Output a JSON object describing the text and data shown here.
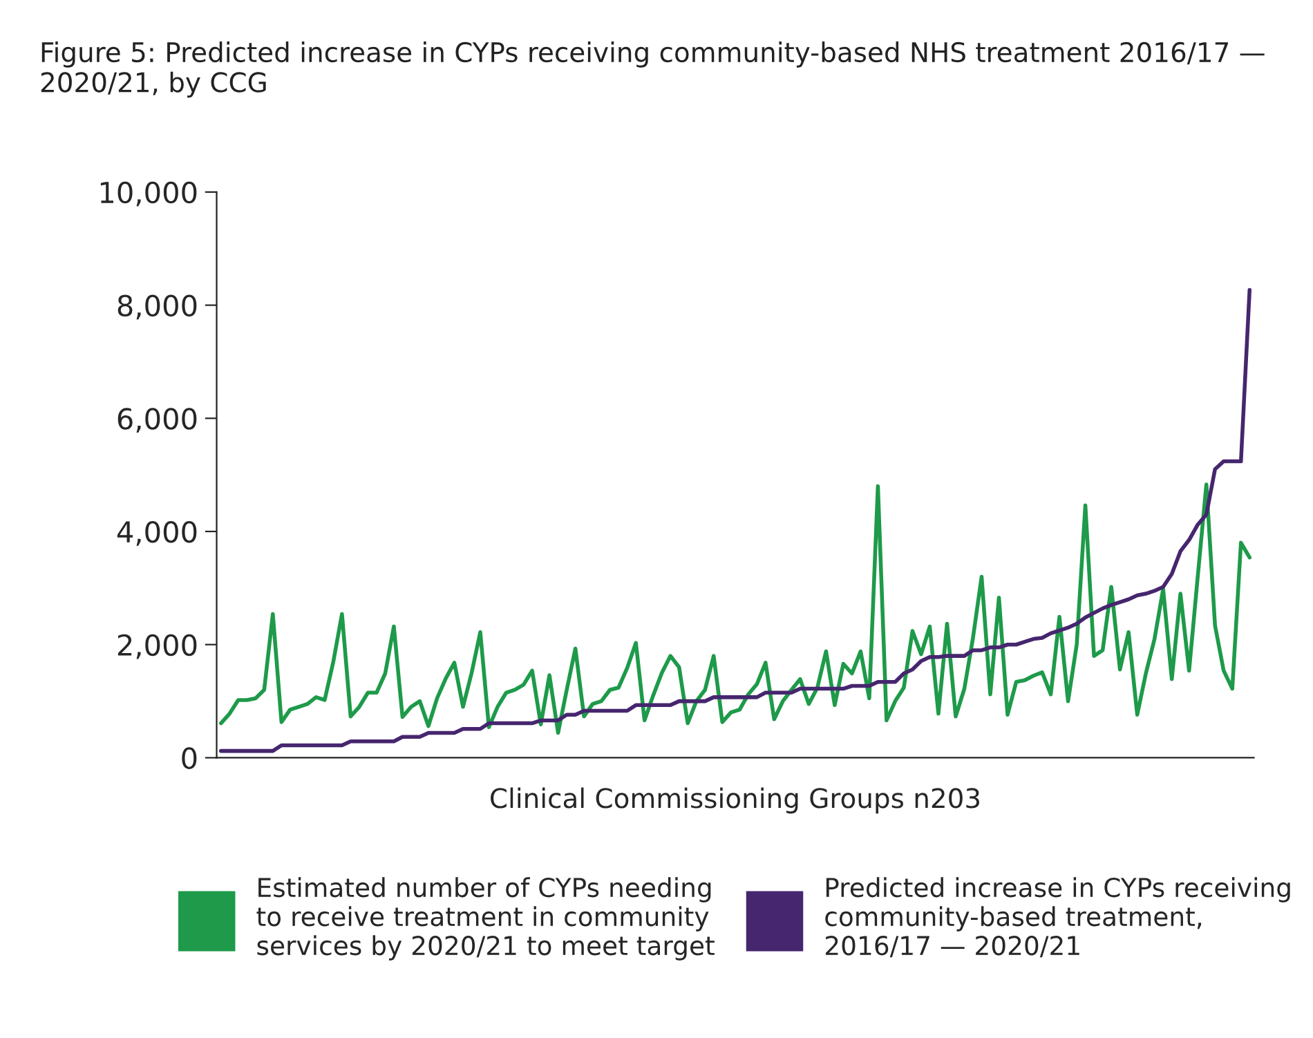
{
  "chart_data": {
    "type": "line",
    "title": "Figure 5: Predicted increase in CYPs receiving community-based NHS treatment 2016/17 —\n2020/21, by CCG",
    "xlabel": "Clinical Commissioning Groups n203",
    "categories": [
      null,
      null,
      null,
      null,
      null,
      null,
      null,
      null,
      null,
      null,
      null,
      null,
      null,
      null,
      null,
      null,
      null,
      null,
      null,
      null,
      null,
      null,
      null,
      null,
      null,
      null,
      null,
      null,
      null,
      null,
      null,
      null,
      null,
      null,
      null,
      null,
      null,
      null,
      null,
      null,
      null,
      null,
      null,
      null,
      null,
      null,
      null,
      null,
      null,
      null,
      null,
      null,
      null,
      null,
      null,
      null,
      null,
      null,
      null,
      null,
      null,
      null,
      null,
      null,
      null,
      null,
      null,
      null,
      null,
      null,
      null,
      null,
      null,
      null,
      null,
      null,
      null,
      null,
      null,
      null,
      null,
      null,
      null,
      null,
      null,
      null,
      null,
      null,
      null,
      null,
      null,
      null,
      null,
      null,
      null,
      null,
      null,
      null,
      null,
      null,
      null,
      null,
      null,
      null,
      null,
      null,
      null,
      null,
      null,
      null,
      null,
      null,
      null,
      null,
      null,
      null,
      null,
      null,
      null,
      null
    ],
    "series": [
      {
        "name": "Estimated number of CYPs needing\nto receive treatment in community\nservices by 2020/21 to meet target",
        "color": "#1e9a4a",
        "values": [
          610,
          780,
          1020,
          1020,
          1050,
          1200,
          2540,
          630,
          850,
          900,
          950,
          1070,
          1020,
          1700,
          2540,
          730,
          900,
          1150,
          1150,
          1490,
          2320,
          720,
          900,
          1000,
          560,
          1050,
          1400,
          1680,
          900,
          1500,
          2220,
          540,
          900,
          1150,
          1200,
          1290,
          1540,
          590,
          1460,
          440,
          1200,
          1930,
          730,
          950,
          1000,
          1200,
          1240,
          1590,
          2030,
          660,
          1100,
          1500,
          1800,
          1600,
          610,
          1000,
          1200,
          1800,
          630,
          800,
          850,
          1120,
          1300,
          1680,
          680,
          1000,
          1200,
          1390,
          950,
          1240,
          1880,
          930,
          1660,
          1490,
          1880,
          1050,
          4800,
          660,
          1000,
          1240,
          2240,
          1830,
          2320,
          780,
          2370,
          730,
          1220,
          2120,
          3200,
          1120,
          2830,
          760,
          1340,
          1370,
          1450,
          1510,
          1120,
          2490,
          1000,
          2000,
          4460,
          1800,
          1900,
          3020,
          1560,
          2220,
          760,
          1490,
          2100,
          2980,
          1390,
          2900,
          1540,
          3200,
          4830,
          2340,
          1540,
          1220,
          3800,
          3540
        ]
      },
      {
        "name": "Predicted increase in CYPs receiving\ncommunity-based treatment,\n2016/17 — 2020/21",
        "color": "#46266e",
        "values": [
          120,
          120,
          120,
          120,
          120,
          120,
          120,
          220,
          220,
          220,
          220,
          220,
          220,
          220,
          220,
          290,
          290,
          290,
          290,
          290,
          290,
          370,
          370,
          370,
          440,
          440,
          440,
          440,
          510,
          510,
          510,
          610,
          610,
          610,
          610,
          610,
          610,
          660,
          660,
          660,
          760,
          760,
          830,
          830,
          830,
          830,
          830,
          830,
          930,
          930,
          930,
          930,
          930,
          1000,
          1000,
          1000,
          1000,
          1070,
          1070,
          1070,
          1070,
          1070,
          1070,
          1150,
          1150,
          1150,
          1150,
          1220,
          1220,
          1220,
          1220,
          1220,
          1220,
          1270,
          1270,
          1270,
          1340,
          1340,
          1340,
          1490,
          1560,
          1710,
          1780,
          1780,
          1800,
          1800,
          1800,
          1900,
          1900,
          1950,
          1950,
          2000,
          2000,
          2050,
          2100,
          2120,
          2200,
          2250,
          2300,
          2370,
          2480,
          2560,
          2640,
          2700,
          2750,
          2800,
          2870,
          2900,
          2950,
          3020,
          3250,
          3650,
          3850,
          4120,
          4300,
          5100,
          5240,
          5240,
          5240,
          8270
        ]
      }
    ],
    "ylim": [
      0,
      10000
    ],
    "yticks": [
      {
        "value": 0,
        "label": "0"
      },
      {
        "value": 2000,
        "label": "2,000"
      },
      {
        "value": 4000,
        "label": "4,000"
      },
      {
        "value": 6000,
        "label": "6,000"
      },
      {
        "value": 8000,
        "label": "8,000"
      },
      {
        "value": 10000,
        "label": "10,000"
      }
    ],
    "grid": false,
    "legend": "bottom",
    "marker": "none",
    "line_style": "solid"
  }
}
